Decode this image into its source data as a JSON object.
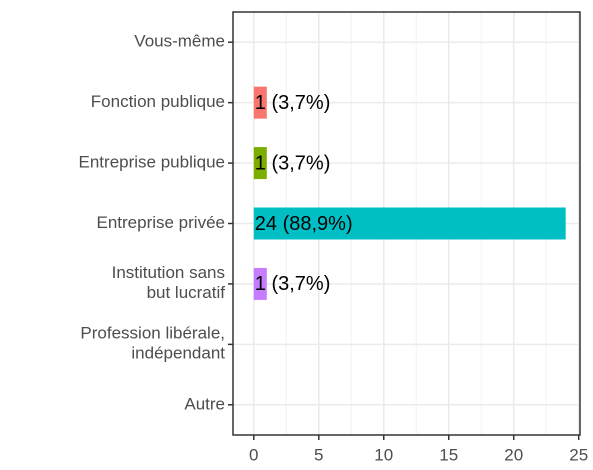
{
  "chart_data": {
    "type": "barh",
    "categories": [
      "Vous-même",
      "Fonction publique",
      "Entreprise publique",
      "Entreprise privée",
      "Institution sans\nbut lucratif",
      "Profession libérale,\nindépendant",
      "Autre"
    ],
    "values": [
      0,
      1,
      1,
      24,
      1,
      0,
      0
    ],
    "value_labels": [
      null,
      "1 (3,7%)",
      "1 (3,7%)",
      "24 (88,9%)",
      "1 (3,7%)",
      null,
      null
    ],
    "colors": [
      null,
      "#F8766D",
      "#7CAE00",
      "#00BFC4",
      "#C77CFF",
      null,
      null
    ],
    "xlim": [
      -1.6,
      25.1
    ],
    "xticks": [
      0,
      5,
      10,
      15,
      20,
      25
    ],
    "grid": true
  }
}
